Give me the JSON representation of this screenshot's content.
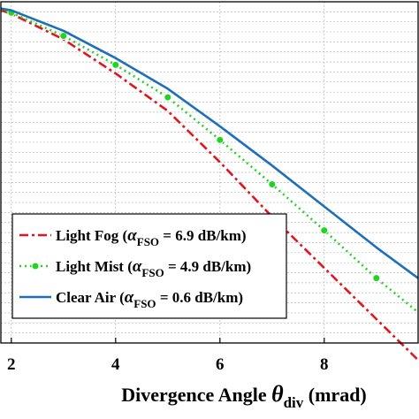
{
  "chart_data": {
    "type": "line",
    "xlabel": {
      "main": "Divergence Angle ",
      "symbol": "θ",
      "sub": "div",
      "unit": " (mrad)"
    },
    "ylabel": "",
    "xlim": [
      1.8,
      9.8
    ],
    "ylim": [
      0,
      1
    ],
    "x_ticks": [
      "2",
      "4",
      "6",
      "8"
    ],
    "grid": true,
    "legend_position": "bottom-left",
    "series": [
      {
        "name": "Light Fog",
        "alpha_label": "6.9 dB/km",
        "color": "#e0151d",
        "style": "dash-dot",
        "x": [
          1.8,
          2.0,
          3.0,
          4.0,
          5.0,
          6.0,
          7.0,
          8.0,
          9.0,
          9.8
        ],
        "y": [
          0.975,
          0.965,
          0.89,
          0.79,
          0.68,
          0.53,
          0.37,
          0.22,
          0.07,
          -0.05
        ]
      },
      {
        "name": "Light Mist",
        "alpha_label": "4.9 dB/km",
        "color": "#22d422",
        "style": "dotted-markers",
        "x": [
          1.8,
          2.0,
          3.0,
          4.0,
          5.0,
          6.0,
          7.0,
          8.0,
          9.0,
          9.8
        ],
        "y": [
          0.978,
          0.968,
          0.9,
          0.815,
          0.72,
          0.595,
          0.465,
          0.33,
          0.19,
          0.09
        ],
        "markers_x": [
          2.0,
          3.0,
          4.0,
          5.0,
          6.0,
          7.0,
          8.0,
          9.0
        ]
      },
      {
        "name": "Clear Air",
        "alpha_label": "0.6 dB/km",
        "color": "#1f6fb8",
        "style": "solid",
        "x": [
          1.8,
          2.0,
          3.0,
          4.0,
          5.0,
          6.0,
          7.0,
          8.0,
          9.0,
          9.8
        ],
        "y": [
          0.98,
          0.975,
          0.915,
          0.835,
          0.745,
          0.635,
          0.52,
          0.4,
          0.28,
          0.19
        ]
      }
    ]
  }
}
